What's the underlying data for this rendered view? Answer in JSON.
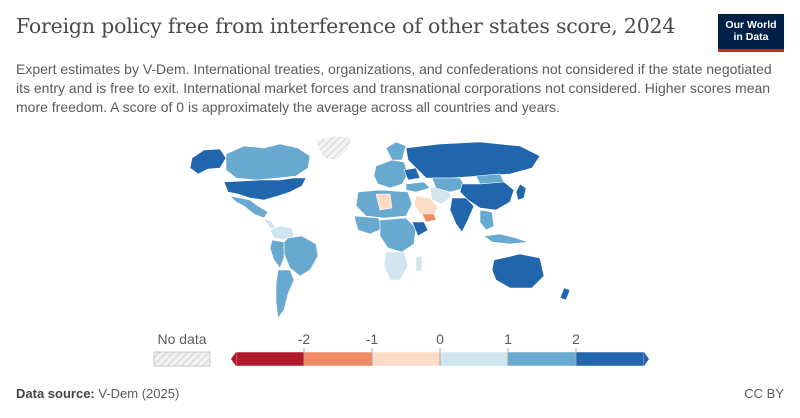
{
  "header": {
    "title": "Foreign policy free from interference of other states score, 2024",
    "subtitle": "Expert estimates by V-Dem. International treaties, organizations, and confederations not considered if the state negotiated its entry and is free to exit. International market forces and transnational corporations not considered. Higher scores mean more freedom. A score of 0 is approximately the average across all countries and years.",
    "logo_line1": "Our World",
    "logo_line2": "in Data"
  },
  "legend": {
    "no_data_label": "No data",
    "ticks": [
      "-2",
      "-1",
      "0",
      "1",
      "2"
    ],
    "colors": [
      "#b2182b",
      "#ef8a62",
      "#fddbc7",
      "#d1e5f0",
      "#67a9cf",
      "#2166ac"
    ],
    "no_data_color": "#e8e8e8"
  },
  "footer": {
    "source_label": "Data source:",
    "source_value": "V-Dem (2025)",
    "license": "CC BY"
  }
}
